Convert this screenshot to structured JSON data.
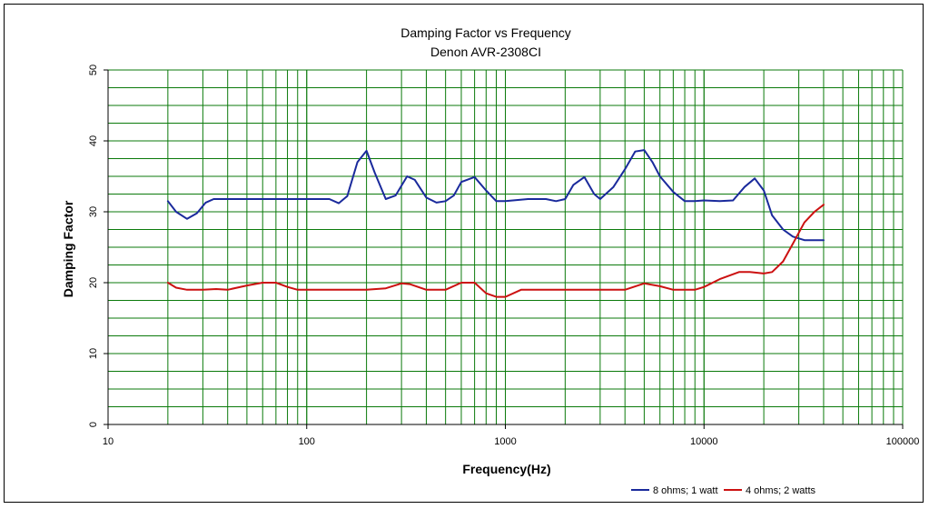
{
  "chart_data": {
    "type": "line",
    "title": "Damping Factor  vs Frequency",
    "subtitle": "Denon AVR-2308CI",
    "xlabel": "Frequency(Hz)",
    "ylabel": "Damping Factor",
    "xscale": "log",
    "xlim": [
      10,
      100000
    ],
    "ylim": [
      0,
      50
    ],
    "grid": true,
    "legend": "bottom-right",
    "x_ticks": [
      {
        "value": 10,
        "label": "10"
      },
      {
        "value": 100,
        "label": "100"
      },
      {
        "value": 1000,
        "label": "1000"
      },
      {
        "value": 10000,
        "label": "10000"
      },
      {
        "value": 100000,
        "label": "100000"
      }
    ],
    "y_ticks": [
      {
        "value": 0,
        "label": "0"
      },
      {
        "value": 10,
        "label": "10"
      },
      {
        "value": 20,
        "label": "20"
      },
      {
        "value": 30,
        "label": "30"
      },
      {
        "value": 40,
        "label": "40"
      },
      {
        "value": 50,
        "label": "50"
      }
    ],
    "series": [
      {
        "name": "8 ohms; 1 watt",
        "color": "#1a2a9c",
        "x": [
          20,
          22,
          25,
          28,
          31,
          34,
          40,
          50,
          70,
          100,
          130,
          145,
          160,
          180,
          200,
          220,
          250,
          280,
          320,
          350,
          400,
          450,
          500,
          550,
          600,
          700,
          800,
          900,
          1000,
          1300,
          1600,
          1800,
          2000,
          2200,
          2500,
          2800,
          3000,
          3500,
          4000,
          4500,
          5000,
          5500,
          6000,
          7000,
          8000,
          9000,
          10000,
          12000,
          14000,
          16000,
          18000,
          20000,
          22000,
          25000,
          28000,
          32000,
          35000,
          40000
        ],
        "y": [
          31.5,
          30.0,
          29.0,
          29.8,
          31.3,
          31.8,
          31.8,
          31.8,
          31.8,
          31.8,
          31.8,
          31.2,
          32.2,
          37.0,
          38.6,
          35.5,
          31.8,
          32.3,
          35.0,
          34.5,
          32.0,
          31.3,
          31.5,
          32.3,
          34.2,
          34.9,
          33.0,
          31.5,
          31.5,
          31.8,
          31.8,
          31.5,
          31.8,
          33.8,
          34.9,
          32.5,
          31.8,
          33.5,
          36.0,
          38.5,
          38.7,
          37.0,
          35.0,
          32.8,
          31.5,
          31.5,
          31.6,
          31.5,
          31.6,
          33.5,
          34.7,
          33.0,
          29.5,
          27.5,
          26.5,
          26.0,
          26.0,
          26.0
        ]
      },
      {
        "name": "4 ohms; 2 watts",
        "color": "#cc1111",
        "x": [
          20,
          22,
          25,
          30,
          35,
          40,
          50,
          60,
          70,
          80,
          90,
          100,
          130,
          200,
          250,
          300,
          330,
          400,
          500,
          600,
          700,
          800,
          900,
          1000,
          1200,
          1500,
          2000,
          3000,
          4000,
          5000,
          6000,
          7000,
          8000,
          9000,
          10000,
          12000,
          15000,
          17000,
          20000,
          22000,
          25000,
          28000,
          32000,
          36000,
          40000
        ],
        "y": [
          20.0,
          19.3,
          19.0,
          19.0,
          19.1,
          19.0,
          19.6,
          20.0,
          20.0,
          19.4,
          19.0,
          19.0,
          19.0,
          19.0,
          19.2,
          19.9,
          19.8,
          19.0,
          19.0,
          20.0,
          20.0,
          18.5,
          18.0,
          18.0,
          19.0,
          19.0,
          19.0,
          19.0,
          19.0,
          19.9,
          19.5,
          19.0,
          19.0,
          19.0,
          19.4,
          20.5,
          21.5,
          21.5,
          21.3,
          21.5,
          23.0,
          25.5,
          28.5,
          30.0,
          31.0
        ]
      }
    ]
  }
}
